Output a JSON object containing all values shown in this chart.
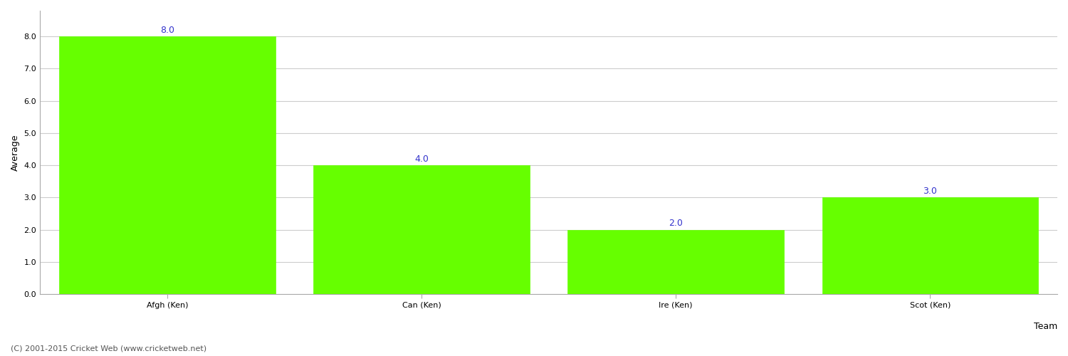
{
  "categories": [
    "Afgh (Ken)",
    "Can (Ken)",
    "Ire (Ken)",
    "Scot (Ken)"
  ],
  "values": [
    8.0,
    4.0,
    2.0,
    3.0
  ],
  "bar_color": "#66ff00",
  "bar_edge_color": "#66ff00",
  "value_color": "#3333cc",
  "xlabel": "Team",
  "ylabel": "Average",
  "ylim": [
    0.0,
    8.8
  ],
  "yticks": [
    0.0,
    1.0,
    2.0,
    3.0,
    4.0,
    5.0,
    6.0,
    7.0,
    8.0
  ],
  "background_color": "#ffffff",
  "grid_color": "#cccccc",
  "footer": "(C) 2001-2015 Cricket Web (www.cricketweb.net)",
  "value_fontsize": 9,
  "axis_label_fontsize": 9,
  "tick_fontsize": 8,
  "footer_fontsize": 8,
  "bar_width": 0.85
}
